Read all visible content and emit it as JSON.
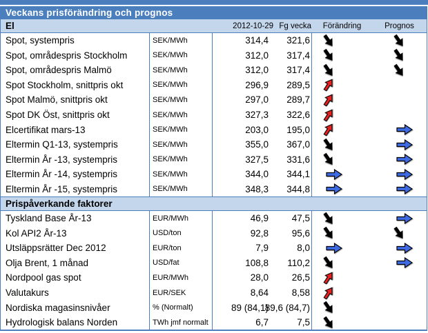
{
  "title": "Veckans prisförändring och prognos",
  "columns": [
    "2012-10-29",
    "Fg vecka",
    "Förändring",
    "Prognos"
  ],
  "colors": {
    "header_bar": "#4a7ebc",
    "section_band": "#c3d6ec",
    "border": "#4a7ebc",
    "arrow_down": "#000000",
    "arrow_up": "#e8201f",
    "arrow_flat": "#3d6be4"
  },
  "arrow_meaning": {
    "down": "decrease",
    "up": "increase",
    "flat": "unchanged"
  },
  "sections": [
    {
      "title": "El",
      "rows": [
        {
          "label": "Spot, systempris",
          "unit": "SEK/MWh",
          "current": "314,4",
          "previous": "321,6",
          "change": "down",
          "forecast": "down"
        },
        {
          "label": "Spot, områdespris Stockholm",
          "unit": "SEK/MWh",
          "current": "312,0",
          "previous": "317,4",
          "change": "down",
          "forecast": "down"
        },
        {
          "label": "Spot, områdespris Malmö",
          "unit": "SEK/MWh",
          "current": "312,0",
          "previous": "317,4",
          "change": "down",
          "forecast": "down"
        },
        {
          "label": "Spot Stockholm, snittpris okt",
          "unit": "SEK/MWh",
          "current": "296,9",
          "previous": "289,5",
          "change": "up",
          "forecast": null
        },
        {
          "label": "Spot Malmö, snittpris okt",
          "unit": "SEK/MWh",
          "current": "297,0",
          "previous": "289,7",
          "change": "up",
          "forecast": null
        },
        {
          "label": "Spot DK Öst, snittpris okt",
          "unit": "SEK/MWh",
          "current": "327,3",
          "previous": "322,6",
          "change": "up",
          "forecast": null
        },
        {
          "label": "Elcertifikat mars-13",
          "unit": "SEK/MWh",
          "current": "203,0",
          "previous": "195,0",
          "change": "up",
          "forecast": "flat"
        },
        {
          "label": "Eltermin Q1-13, systempris",
          "unit": "SEK/MWh",
          "current": "355,0",
          "previous": "367,0",
          "change": "down",
          "forecast": "flat"
        },
        {
          "label": "Eltermin År -13, systempris",
          "unit": "SEK/MWh",
          "current": "327,5",
          "previous": "331,6",
          "change": "down",
          "forecast": "flat"
        },
        {
          "label": "Eltermin År -14, systempris",
          "unit": "SEK/MWh",
          "current": "344,0",
          "previous": "344,1",
          "change": "flat",
          "forecast": "flat"
        },
        {
          "label": "Eltermin År -15, systempris",
          "unit": "SEK/MWh",
          "current": "348,3",
          "previous": "344,8",
          "change": "flat",
          "forecast": "flat"
        }
      ]
    },
    {
      "title": "Prispåverkande faktorer",
      "rows": [
        {
          "label": "Tyskland Base År-13",
          "unit": "EUR/MWh",
          "current": "46,9",
          "previous": "47,5",
          "change": "down",
          "forecast": "flat"
        },
        {
          "label": "Kol API2 År-13",
          "unit": "USD/ton",
          "current": "92,8",
          "previous": "95,6",
          "change": "down",
          "forecast": "down"
        },
        {
          "label": "Utsläppsrätter Dec 2012",
          "unit": "EUR/ton",
          "current": "7,9",
          "previous": "8,0",
          "change": "flat",
          "forecast": "flat"
        },
        {
          "label": "Olja Brent, 1 månad",
          "unit": "USD/fat",
          "current": "108,8",
          "previous": "110,2",
          "change": "down",
          "forecast": "flat"
        },
        {
          "label": "Nordpool gas spot",
          "unit": "EUR/MWh",
          "current": "28,0",
          "previous": "26,5",
          "change": "up",
          "forecast": null
        },
        {
          "label": "Valutakurs",
          "unit": "EUR/SEK",
          "current": "8,64",
          "previous": "8,58",
          "change": "up",
          "forecast": null
        },
        {
          "label": "Nordiska magasinsnivåer",
          "unit": "% (Normalt)",
          "current": "89 (84,1)",
          "previous": "89,6 (84,7)",
          "change": "down",
          "forecast": null
        },
        {
          "label": "Hydrologisk balans Norden",
          "unit": "TWh jmf normalt",
          "current": "6,7",
          "previous": "7,5",
          "change": "down",
          "forecast": null
        }
      ]
    }
  ]
}
